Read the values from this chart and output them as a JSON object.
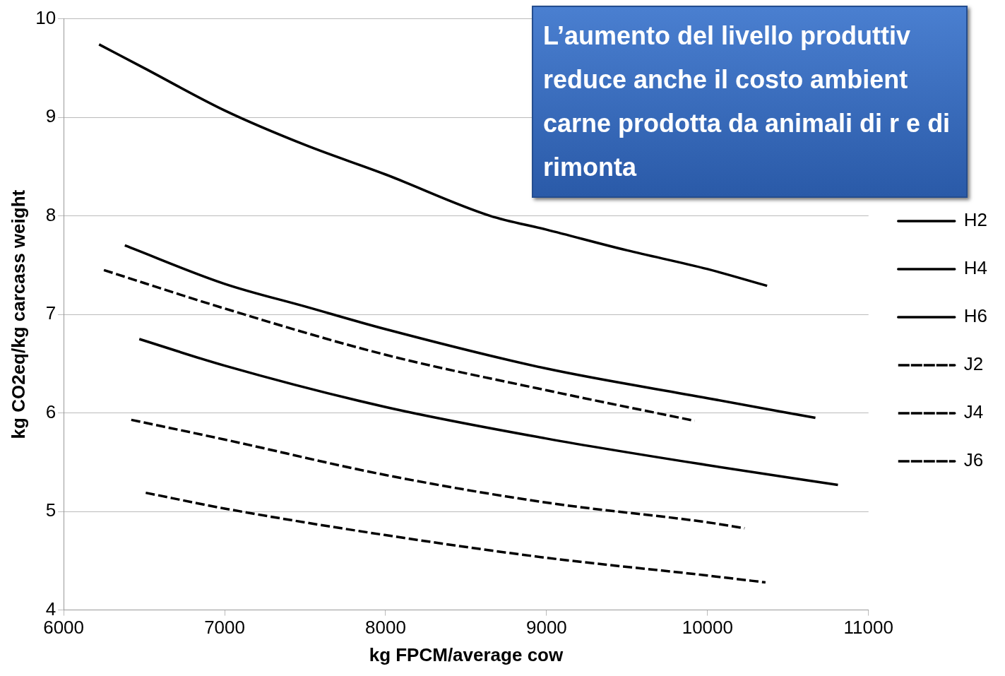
{
  "chart_data": {
    "type": "line",
    "xlabel": "kg FPCM/average cow",
    "ylabel": "kg CO2eq/kg carcass weight",
    "xlim": [
      6000,
      11000
    ],
    "xticks": [
      6000,
      7000,
      8000,
      9000,
      10000,
      11000
    ],
    "ylim": [
      4,
      10
    ],
    "yticks": [
      4,
      5,
      6,
      7,
      8,
      9,
      10
    ],
    "grid": "y",
    "legend": "right",
    "marker": "none",
    "series": [
      {
        "name": "H2",
        "color": "#000000",
        "line_style": "solid",
        "x": [
          6220,
          6500,
          7000,
          7500,
          8000,
          8650,
          9000,
          9500,
          10000,
          10370
        ],
        "values": [
          9.74,
          9.5,
          9.07,
          8.72,
          8.42,
          8.0,
          7.86,
          7.65,
          7.46,
          7.29
        ]
      },
      {
        "name": "H4",
        "color": "#000000",
        "line_style": "solid",
        "x": [
          6380,
          7000,
          7500,
          8000,
          9000,
          10000,
          10670
        ],
        "values": [
          7.7,
          7.31,
          7.08,
          6.85,
          6.45,
          6.15,
          5.95
        ]
      },
      {
        "name": "H6",
        "color": "#000000",
        "line_style": "solid",
        "x": [
          6470,
          7000,
          8000,
          9000,
          10000,
          10810
        ],
        "values": [
          6.75,
          6.48,
          6.06,
          5.74,
          5.47,
          5.27
        ]
      },
      {
        "name": "J2",
        "color": "#000000",
        "line_style": "dashed",
        "x": [
          6250,
          7000,
          8000,
          9000,
          9920
        ],
        "values": [
          7.45,
          7.06,
          6.59,
          6.23,
          5.92
        ]
      },
      {
        "name": "J4",
        "color": "#000000",
        "line_style": "dashed",
        "x": [
          6420,
          7000,
          8000,
          9000,
          10000,
          10230
        ],
        "values": [
          5.93,
          5.73,
          5.37,
          5.09,
          4.89,
          4.83
        ]
      },
      {
        "name": "J6",
        "color": "#000000",
        "line_style": "dashed",
        "x": [
          6510,
          7000,
          8000,
          9000,
          10000,
          10360
        ],
        "values": [
          5.19,
          5.03,
          4.76,
          4.53,
          4.35,
          4.28
        ]
      }
    ],
    "annotations": [
      "L’aumento del livello produttiv reduce anche il costo ambient carne prodotta da animali di r e di rimonta"
    ]
  }
}
